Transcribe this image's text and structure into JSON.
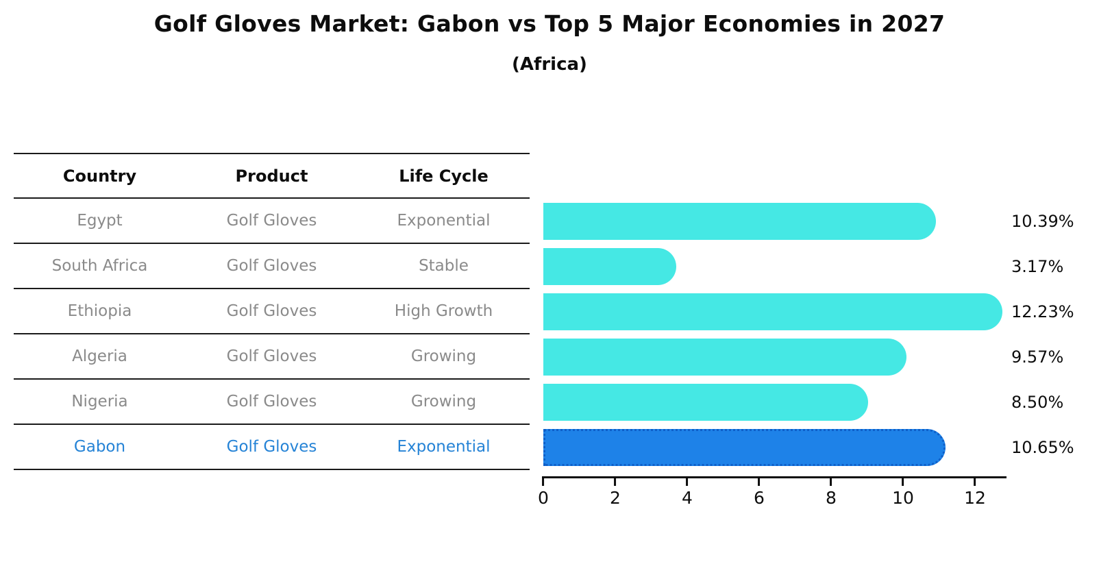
{
  "title": "Golf Gloves Market: Gabon vs Top 5 Major Economies in 2027",
  "subtitle": "(Africa)",
  "table": {
    "headers": [
      "Country",
      "Product",
      "Life Cycle"
    ],
    "rows": [
      {
        "country": "Egypt",
        "product": "Golf Gloves",
        "life_cycle": "Exponential",
        "highlight": false
      },
      {
        "country": "South Africa",
        "product": "Golf Gloves",
        "life_cycle": "Stable",
        "highlight": false
      },
      {
        "country": "Ethiopia",
        "product": "Golf Gloves",
        "life_cycle": "High Growth",
        "highlight": false
      },
      {
        "country": "Algeria",
        "product": "Golf Gloves",
        "life_cycle": "Growing",
        "highlight": false
      },
      {
        "country": "Nigeria",
        "product": "Golf Gloves",
        "life_cycle": "Growing",
        "highlight": false
      },
      {
        "country": "Gabon",
        "product": "Golf Gloves",
        "life_cycle": "Exponential",
        "highlight": true
      }
    ]
  },
  "chart_data": {
    "type": "bar",
    "orientation": "horizontal",
    "title": "Golf Gloves Market: Gabon vs Top 5 Major Economies in 2027 (Africa)",
    "categories": [
      "Egypt",
      "South Africa",
      "Ethiopia",
      "Algeria",
      "Nigeria",
      "Gabon"
    ],
    "values": [
      10.39,
      3.17,
      12.23,
      9.57,
      8.5,
      10.65
    ],
    "value_labels": [
      "10.39%",
      "3.17%",
      "12.23%",
      "9.57%",
      "8.50%",
      "10.65%"
    ],
    "x_ticks": [
      0,
      2,
      4,
      6,
      8,
      10,
      12
    ],
    "xlim": [
      0,
      12.86
    ],
    "xlabel": "",
    "ylabel": "",
    "grid": false,
    "legend": false,
    "bar_color": "#45e8e4",
    "highlight_color": "#1e82e8",
    "highlight_edge_color": "#0e5fc8",
    "highlight_index": 5
  },
  "colors": {
    "title_text": "#0d0d0d",
    "table_header_text": "#0d0d0d",
    "table_body_text": "#8a8a8a",
    "highlight_text": "#2583d6",
    "axis": "#0d0d0d"
  }
}
